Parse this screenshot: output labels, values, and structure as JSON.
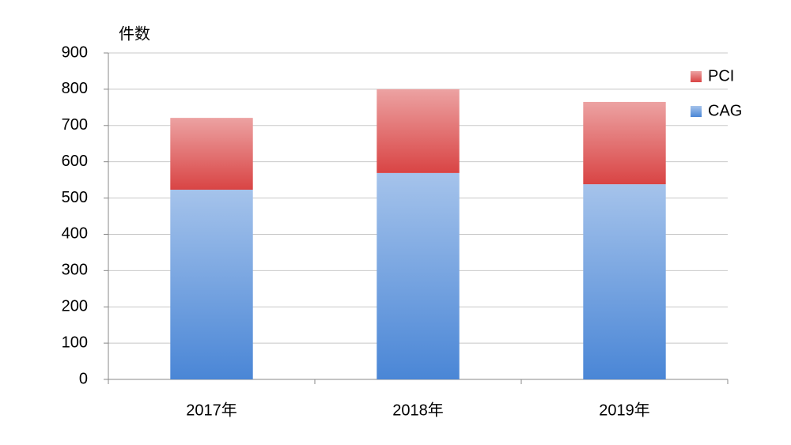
{
  "chart_data": {
    "type": "stacked_bar",
    "y_axis_label": "件数",
    "categories": [
      "2017年",
      "2018年",
      "2019年"
    ],
    "series": [
      {
        "name": "CAG",
        "color": "#4a86d6",
        "values": [
          523,
          569,
          538
        ]
      },
      {
        "name": "PCI",
        "color": "#d94444",
        "values": [
          198,
          231,
          227
        ]
      }
    ],
    "ylim": [
      0,
      900
    ],
    "yticks": [
      0,
      100,
      200,
      300,
      400,
      500,
      600,
      700,
      800,
      900
    ],
    "grid": true,
    "legend": "right"
  }
}
